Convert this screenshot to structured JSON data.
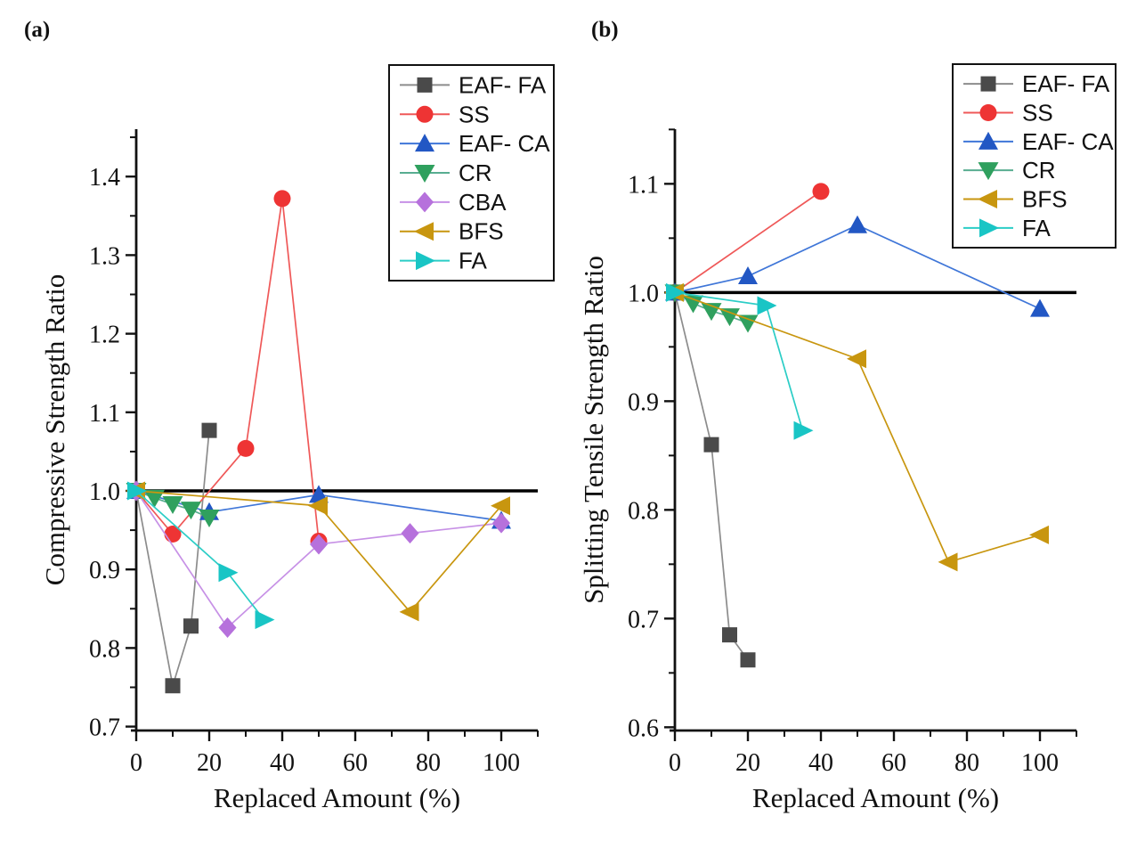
{
  "figure": {
    "background": "#ffffff",
    "axis_color": "#111111",
    "reference_line_color": "#000000"
  },
  "chart_data": [
    {
      "type": "line",
      "panel_label": "(a)",
      "xlabel": "Replaced Amount (%)",
      "ylabel": "Compressive Strength Ratio",
      "xlim": [
        0,
        110
      ],
      "x_ticks": [
        0,
        20,
        40,
        60,
        80,
        100
      ],
      "x_minor_ticks": [
        10,
        30,
        50,
        70,
        90,
        110
      ],
      "ylim": [
        0.695,
        1.46
      ],
      "y_ticks": [
        0.7,
        0.8,
        0.9,
        1.0,
        1.1,
        1.2,
        1.3,
        1.4
      ],
      "y_minor_ticks": [
        0.75,
        0.85,
        0.95,
        1.05,
        1.15,
        1.25,
        1.35,
        1.45
      ],
      "reference_line_y": 1.0,
      "grid": false,
      "legend_position": "upper right",
      "series": [
        {
          "name": "EAF- FA",
          "marker": "square",
          "marker_color": "#4a4a4a",
          "line_color": "#8c8c8c",
          "points": [
            [
              0,
              1.0
            ],
            [
              10,
              0.752
            ],
            [
              15,
              0.828
            ],
            [
              20,
              1.077
            ]
          ]
        },
        {
          "name": "SS",
          "marker": "circle",
          "marker_color": "#ee3434",
          "line_color": "#ef5858",
          "points": [
            [
              0,
              1.0
            ],
            [
              10,
              0.945
            ],
            [
              30,
              1.054
            ],
            [
              40,
              1.372
            ],
            [
              50,
              0.936
            ]
          ]
        },
        {
          "name": "EAF- CA",
          "marker": "triangle-up",
          "marker_color": "#2257c4",
          "line_color": "#3f76d8",
          "points": [
            [
              0,
              1.0
            ],
            [
              20,
              0.973
            ],
            [
              50,
              0.995
            ],
            [
              100,
              0.962
            ]
          ]
        },
        {
          "name": "CR",
          "marker": "triangle-down",
          "marker_color": "#2fa05e",
          "line_color": "#58ad91",
          "points": [
            [
              0,
              1.0
            ],
            [
              5,
              0.991
            ],
            [
              10,
              0.983
            ],
            [
              15,
              0.976
            ],
            [
              20,
              0.966
            ]
          ]
        },
        {
          "name": "CBA",
          "marker": "diamond",
          "marker_color": "#b671dc",
          "line_color": "#c791e6",
          "points": [
            [
              0,
              1.0
            ],
            [
              25,
              0.826
            ],
            [
              50,
              0.932
            ],
            [
              75,
              0.946
            ],
            [
              100,
              0.959
            ]
          ]
        },
        {
          "name": "BFS",
          "marker": "triangle-left",
          "marker_color": "#c8960f",
          "line_color": "#c8960f",
          "points": [
            [
              0,
              1.0
            ],
            [
              50,
              0.981
            ],
            [
              75,
              0.846
            ],
            [
              100,
              0.981
            ]
          ]
        },
        {
          "name": "FA",
          "marker": "triangle-right",
          "marker_color": "#19c5c5",
          "line_color": "#2bcdc6",
          "points": [
            [
              0,
              1.0
            ],
            [
              25,
              0.896
            ],
            [
              35,
              0.836
            ]
          ]
        }
      ]
    },
    {
      "type": "line",
      "panel_label": "(b)",
      "xlabel": "Replaced Amount (%)",
      "ylabel": "Splitting Tensile Strength Ratio",
      "xlim": [
        0,
        110
      ],
      "x_ticks": [
        0,
        20,
        40,
        60,
        80,
        100
      ],
      "x_minor_ticks": [
        10,
        30,
        50,
        70,
        90,
        110
      ],
      "ylim": [
        0.597,
        1.15
      ],
      "y_ticks": [
        0.6,
        0.7,
        0.8,
        0.9,
        1.0,
        1.1
      ],
      "y_minor_ticks": [
        0.65,
        0.75,
        0.85,
        0.95,
        1.05,
        1.15
      ],
      "reference_line_y": 1.0,
      "grid": false,
      "legend_position": "upper right",
      "series": [
        {
          "name": "EAF- FA",
          "marker": "square",
          "marker_color": "#4a4a4a",
          "line_color": "#8c8c8c",
          "points": [
            [
              0,
              1.0
            ],
            [
              10,
              0.86
            ],
            [
              15,
              0.685
            ],
            [
              20,
              0.662
            ]
          ]
        },
        {
          "name": "SS",
          "marker": "circle",
          "marker_color": "#ee3434",
          "line_color": "#ef5858",
          "points": [
            [
              0,
              1.0
            ],
            [
              40,
              1.093
            ]
          ]
        },
        {
          "name": "EAF- CA",
          "marker": "triangle-up",
          "marker_color": "#2257c4",
          "line_color": "#3f76d8",
          "points": [
            [
              0,
              1.0
            ],
            [
              20,
              1.015
            ],
            [
              50,
              1.062
            ],
            [
              100,
              0.985
            ]
          ]
        },
        {
          "name": "CR",
          "marker": "triangle-down",
          "marker_color": "#2fa05e",
          "line_color": "#58ad91",
          "points": [
            [
              0,
              1.0
            ],
            [
              5,
              0.99
            ],
            [
              10,
              0.983
            ],
            [
              15,
              0.978
            ],
            [
              20,
              0.972
            ]
          ]
        },
        {
          "name": "BFS",
          "marker": "triangle-left",
          "marker_color": "#c8960f",
          "line_color": "#c8960f",
          "points": [
            [
              0,
              1.0
            ],
            [
              50,
              0.939
            ],
            [
              75,
              0.752
            ],
            [
              100,
              0.777
            ]
          ]
        },
        {
          "name": "FA",
          "marker": "triangle-right",
          "marker_color": "#19c5c5",
          "line_color": "#2bcdc6",
          "points": [
            [
              0,
              1.0
            ],
            [
              25,
              0.988
            ],
            [
              35,
              0.873
            ]
          ]
        }
      ]
    }
  ]
}
